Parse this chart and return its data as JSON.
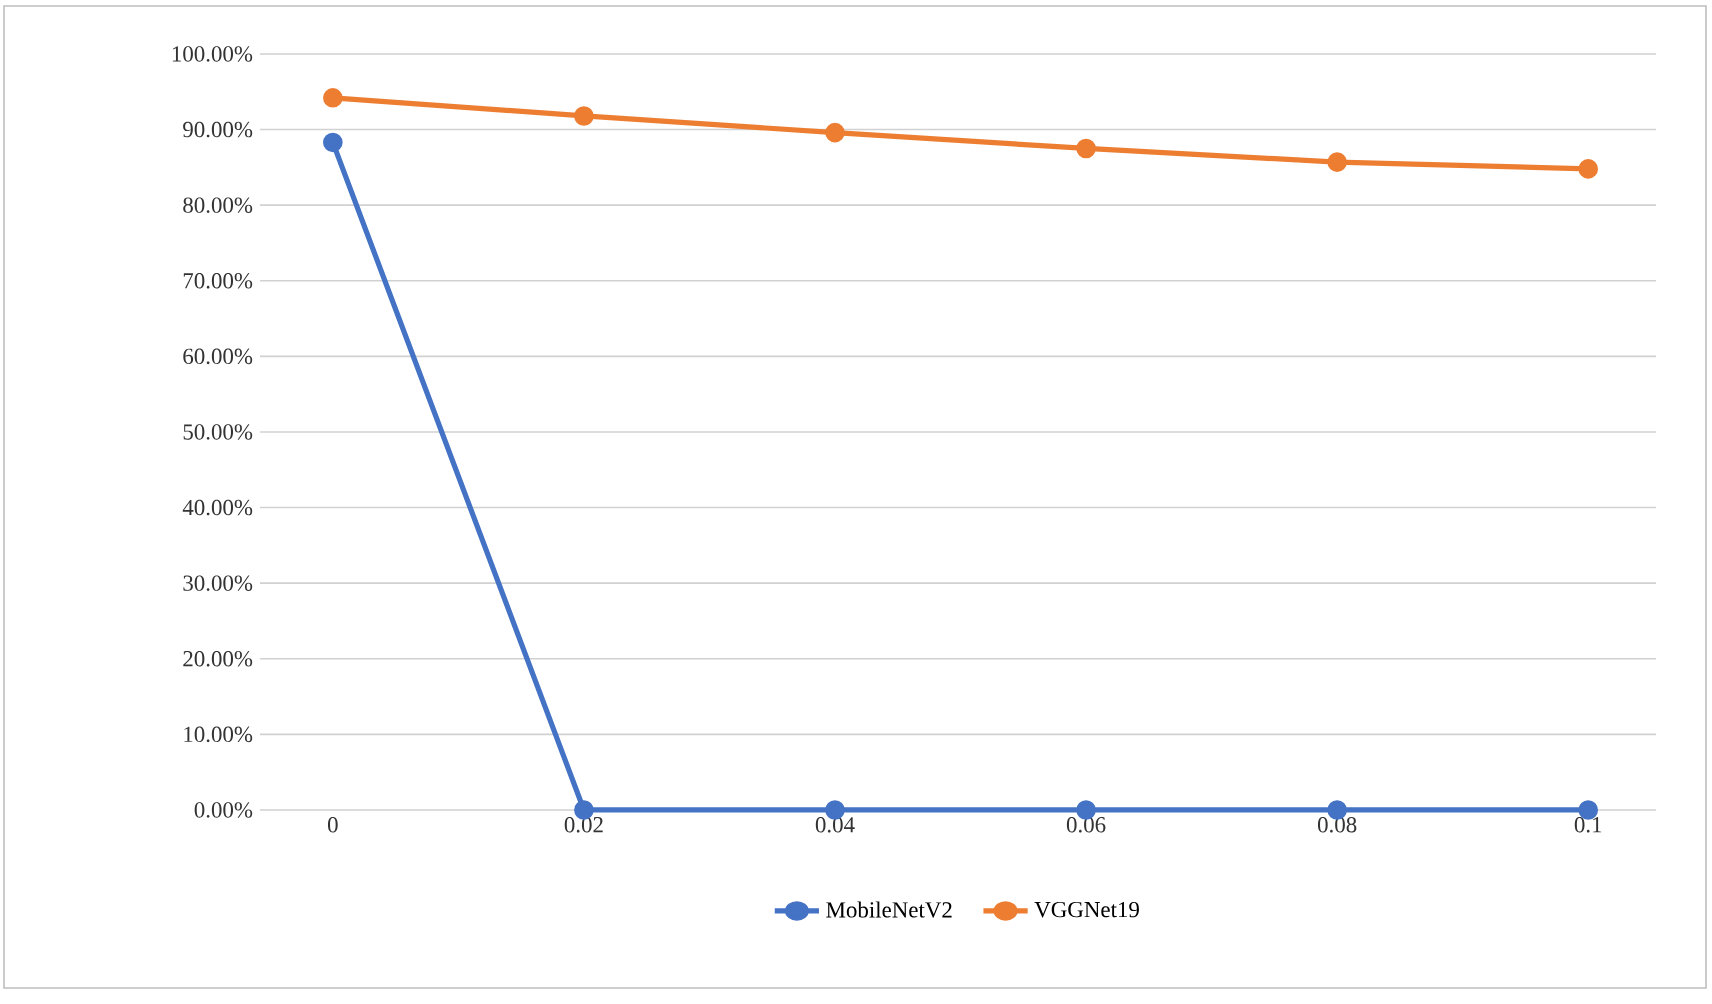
{
  "chart_data": {
    "type": "line",
    "categories": [
      "0",
      "0.02",
      "0.04",
      "0.06",
      "0.08",
      "0.1"
    ],
    "series": [
      {
        "name": "MobileNetV2",
        "color": "#4472c4",
        "values": [
          88.3,
          0,
          0,
          0,
          0,
          0
        ]
      },
      {
        "name": "VGGNet19",
        "color": "#ed7d31",
        "values": [
          94.2,
          91.8,
          89.6,
          87.5,
          85.7,
          84.8
        ]
      }
    ],
    "ylim": [
      0,
      100
    ],
    "yticks": [
      {
        "value": 0,
        "label": "0.00%"
      },
      {
        "value": 10,
        "label": "10.00%"
      },
      {
        "value": 20,
        "label": "20.00%"
      },
      {
        "value": 30,
        "label": "30.00%"
      },
      {
        "value": 40,
        "label": "40.00%"
      },
      {
        "value": 50,
        "label": "50.00%"
      },
      {
        "value": 60,
        "label": "60.00%"
      },
      {
        "value": 70,
        "label": "70.00%"
      },
      {
        "value": 80,
        "label": "80.00%"
      },
      {
        "value": 90,
        "label": "90.00%"
      },
      {
        "value": 100,
        "label": "100.00%"
      }
    ],
    "grid": "y",
    "legend": "bottom",
    "marker": "circle",
    "line_style": "solid"
  }
}
